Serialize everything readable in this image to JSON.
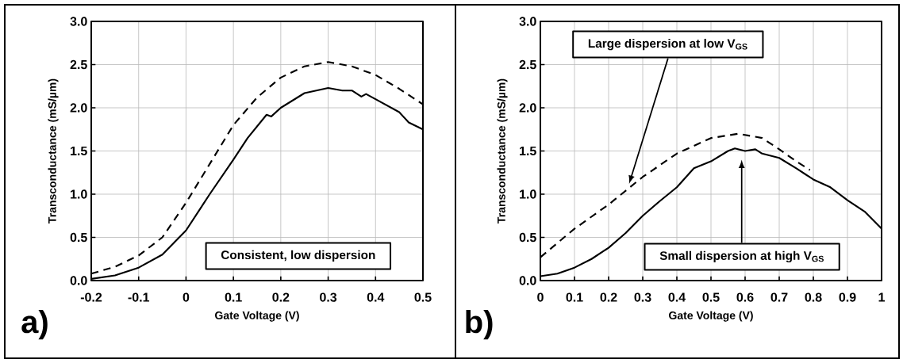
{
  "chart_data": [
    {
      "type": "line",
      "xlabel": "Gate Voltage (V)",
      "ylabel": "Transconductance (mS/µm)",
      "grid": true,
      "xlim": [
        -0.2,
        0.5
      ],
      "xticks": [
        -0.2,
        -0.1,
        0,
        0.1,
        0.2,
        0.3,
        0.4,
        0.5
      ],
      "ylim": [
        0,
        3
      ],
      "yticks": [
        {
          "value": 0,
          "label": "0.0"
        },
        0.5,
        {
          "value": 1,
          "label": "1.0"
        },
        1.5,
        {
          "value": 2,
          "label": "2.0"
        },
        2.5,
        {
          "value": 3,
          "label": "3.0"
        }
      ],
      "series": [
        {
          "color": "#000000",
          "line_style": "dashed",
          "x": [
            -0.2,
            -0.15,
            -0.1,
            -0.05,
            0,
            0.05,
            0.1,
            0.15,
            0.2,
            0.25,
            0.3,
            0.35,
            0.4,
            0.45,
            0.5
          ],
          "values": [
            0.08,
            0.16,
            0.29,
            0.5,
            0.9,
            1.35,
            1.8,
            2.12,
            2.35,
            2.48,
            2.53,
            2.48,
            2.38,
            2.22,
            2.04
          ]
        },
        {
          "color": "#000000",
          "line_style": "solid",
          "x": [
            -0.2,
            -0.15,
            -0.1,
            -0.05,
            0,
            0.05,
            0.1,
            0.13,
            0.17,
            0.18,
            0.2,
            0.25,
            0.3,
            0.33,
            0.35,
            0.37,
            0.38,
            0.4,
            0.45,
            0.47,
            0.5
          ],
          "values": [
            0.02,
            0.06,
            0.15,
            0.3,
            0.58,
            1.0,
            1.4,
            1.65,
            1.92,
            1.9,
            2.0,
            2.17,
            2.23,
            2.2,
            2.2,
            2.13,
            2.16,
            2.1,
            1.95,
            1.83,
            1.75
          ]
        }
      ],
      "annotations": [
        "Consistent,  low dispersion",
        "a)"
      ]
    },
    {
      "type": "line",
      "xlabel": "Gate Voltage (V)",
      "ylabel": "Transconductance (mS/µm)",
      "grid": true,
      "xlim": [
        0,
        1
      ],
      "xticks": [
        0,
        0.1,
        0.2,
        0.3,
        0.4,
        0.5,
        0.6,
        0.7,
        0.8,
        0.9,
        1
      ],
      "ylim": [
        0,
        3
      ],
      "yticks": [
        {
          "value": 0,
          "label": "0.0"
        },
        0.5,
        {
          "value": 1,
          "label": "1.0"
        },
        1.5,
        {
          "value": 2,
          "label": "2.0"
        },
        2.5,
        {
          "value": 3,
          "label": "3.0"
        }
      ],
      "series": [
        {
          "color": "#000000",
          "line_style": "dashed",
          "x": [
            0,
            0.1,
            0.2,
            0.3,
            0.4,
            0.5,
            0.58,
            0.65,
            0.7,
            0.75,
            0.79
          ],
          "values": [
            0.27,
            0.6,
            0.88,
            1.2,
            1.47,
            1.65,
            1.7,
            1.65,
            1.52,
            1.38,
            1.28
          ]
        },
        {
          "color": "#000000",
          "line_style": "solid",
          "x": [
            0,
            0.05,
            0.1,
            0.15,
            0.2,
            0.25,
            0.3,
            0.35,
            0.4,
            0.45,
            0.5,
            0.55,
            0.57,
            0.6,
            0.63,
            0.65,
            0.7,
            0.75,
            0.8,
            0.85,
            0.9,
            0.95,
            1
          ],
          "values": [
            0.05,
            0.08,
            0.15,
            0.25,
            0.38,
            0.55,
            0.75,
            0.92,
            1.08,
            1.3,
            1.38,
            1.5,
            1.53,
            1.5,
            1.52,
            1.47,
            1.42,
            1.3,
            1.17,
            1.08,
            0.93,
            0.8,
            0.6
          ]
        }
      ],
      "annotations": [
        "Large dispersion  at low V$_{GS}$",
        "Small dispersion  at high V$_{GS}$",
        "b)"
      ]
    }
  ]
}
